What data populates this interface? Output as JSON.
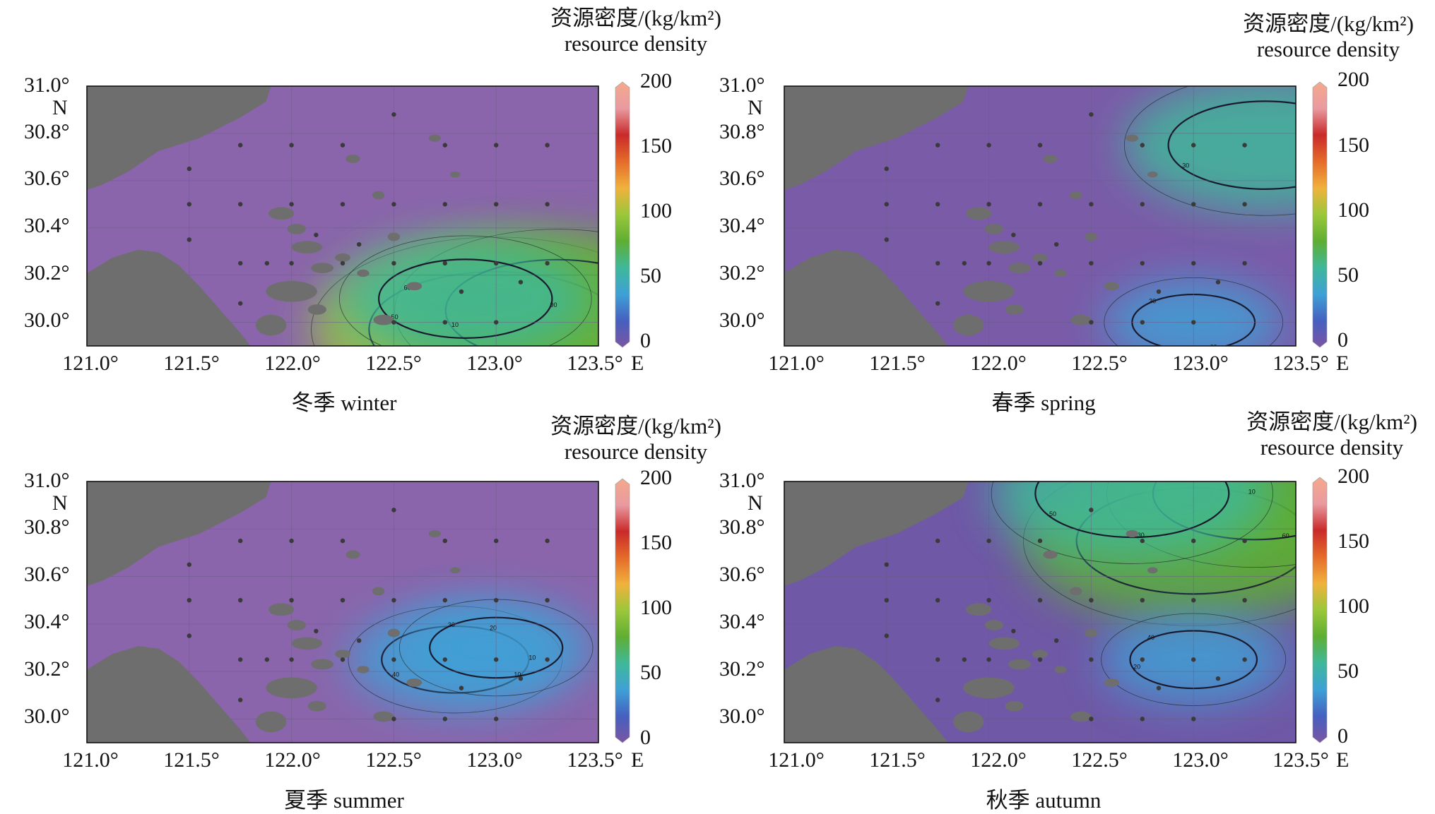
{
  "colorbar": {
    "title_cn": "资源密度/(kg/km²)",
    "title_en": "resource density",
    "ticks": [
      "200",
      "150",
      "100",
      "50",
      "0"
    ],
    "min": 0,
    "max": 200,
    "stops": [
      "#7b55a3",
      "#4560c0",
      "#3fa0d6",
      "#3fb89a",
      "#5fae33",
      "#9bc73a",
      "#f0b23c",
      "#e56b2a",
      "#c92a2a",
      "#e99aa0",
      "#f4a98c"
    ]
  },
  "axes": {
    "x_ticks": [
      "121.0°",
      "121.5°",
      "122.0°",
      "122.5°",
      "123.0°",
      "123.5°"
    ],
    "x_unit": "E",
    "y_ticks": [
      "31.0°",
      "30.8°",
      "30.6°",
      "30.4°",
      "30.2°",
      "30.0°"
    ],
    "y_unit": "N",
    "lon_range": [
      121.0,
      123.5
    ],
    "lat_range": [
      29.9,
      31.0
    ]
  },
  "land_color": "#6e6e6e",
  "panels": [
    {
      "id": "winter",
      "label": "冬季 winter",
      "contour_labels": [
        "20",
        "30",
        "50",
        "60",
        "70",
        "90",
        "70",
        "10"
      ],
      "base_color": "#8a65ab",
      "hotspots": [
        {
          "lon": 123.0,
          "lat": 29.97,
          "value": 95
        },
        {
          "lon": 123.3,
          "lat": 30.05,
          "value": 80
        },
        {
          "lon": 122.85,
          "lat": 30.1,
          "value": 55
        }
      ]
    },
    {
      "id": "spring",
      "label": "春季 spring",
      "contour_labels": [
        "40",
        "60",
        "30",
        "30",
        "5"
      ],
      "base_color": "#7a5ba8",
      "hotspots": [
        {
          "lon": 123.35,
          "lat": 30.75,
          "value": 65
        },
        {
          "lon": 123.0,
          "lat": 30.0,
          "value": 30
        }
      ]
    },
    {
      "id": "summer",
      "label": "夏季 summer",
      "contour_labels": [
        "10",
        "10",
        "40",
        "30",
        "20"
      ],
      "base_color": "#8a65ab",
      "hotspots": [
        {
          "lon": 122.8,
          "lat": 30.25,
          "value": 42
        },
        {
          "lon": 123.0,
          "lat": 30.3,
          "value": 35
        }
      ]
    },
    {
      "id": "autumn",
      "label": "秋季 autumn",
      "contour_labels": [
        "80",
        "60",
        "50",
        "40",
        "10",
        "30",
        "30",
        "20"
      ],
      "base_color": "#6f58a6",
      "hotspots": [
        {
          "lon": 123.0,
          "lat": 30.75,
          "value": 85
        },
        {
          "lon": 123.3,
          "lat": 30.95,
          "value": 70
        },
        {
          "lon": 122.7,
          "lat": 30.95,
          "value": 65
        },
        {
          "lon": 123.0,
          "lat": 30.25,
          "value": 32
        }
      ]
    }
  ],
  "stations": [
    {
      "lon": 122.5,
      "lat": 30.88
    },
    {
      "lon": 121.75,
      "lat": 30.75
    },
    {
      "lon": 122.0,
      "lat": 30.75
    },
    {
      "lon": 122.25,
      "lat": 30.75
    },
    {
      "lon": 122.75,
      "lat": 30.75
    },
    {
      "lon": 123.0,
      "lat": 30.75
    },
    {
      "lon": 123.25,
      "lat": 30.75
    },
    {
      "lon": 121.5,
      "lat": 30.65
    },
    {
      "lon": 121.5,
      "lat": 30.5
    },
    {
      "lon": 121.75,
      "lat": 30.5
    },
    {
      "lon": 122.0,
      "lat": 30.5
    },
    {
      "lon": 122.25,
      "lat": 30.5
    },
    {
      "lon": 122.5,
      "lat": 30.5
    },
    {
      "lon": 122.75,
      "lat": 30.5
    },
    {
      "lon": 123.0,
      "lat": 30.5
    },
    {
      "lon": 123.25,
      "lat": 30.5
    },
    {
      "lon": 122.12,
      "lat": 30.37
    },
    {
      "lon": 121.5,
      "lat": 30.35
    },
    {
      "lon": 122.33,
      "lat": 30.33
    },
    {
      "lon": 121.75,
      "lat": 30.25
    },
    {
      "lon": 121.88,
      "lat": 30.25
    },
    {
      "lon": 122.0,
      "lat": 30.25
    },
    {
      "lon": 122.25,
      "lat": 30.25
    },
    {
      "lon": 122.5,
      "lat": 30.25
    },
    {
      "lon": 122.75,
      "lat": 30.25
    },
    {
      "lon": 123.0,
      "lat": 30.25
    },
    {
      "lon": 123.25,
      "lat": 30.25
    },
    {
      "lon": 123.12,
      "lat": 30.17
    },
    {
      "lon": 122.83,
      "lat": 30.13
    },
    {
      "lon": 121.75,
      "lat": 30.08
    },
    {
      "lon": 122.5,
      "lat": 30.0
    },
    {
      "lon": 122.75,
      "lat": 30.0
    },
    {
      "lon": 123.0,
      "lat": 30.0
    }
  ]
}
